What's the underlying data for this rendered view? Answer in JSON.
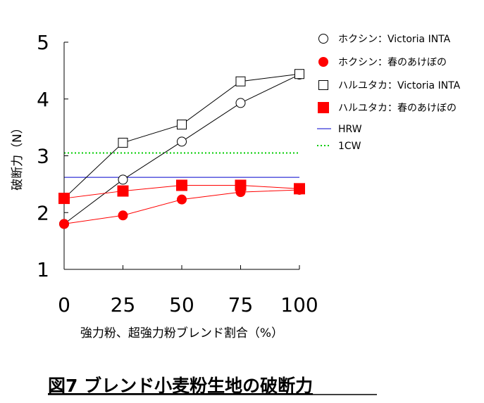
{
  "chart_data": {
    "type": "line",
    "title": "図7 ブレンド小麦粉生地の破断力",
    "xlabel": "強力粉、超強力粉ブレンド割合（%）",
    "ylabel": "破断力（N）",
    "x": [
      0,
      25,
      50,
      75,
      100
    ],
    "x_ticks": [
      "0",
      "25",
      "50",
      "75",
      "100"
    ],
    "y_ticks": [
      "1",
      "2",
      "3",
      "4",
      "5"
    ],
    "ylim": [
      1,
      5
    ],
    "xlim": [
      0,
      100
    ],
    "grid": false,
    "legend_position": "right",
    "series": [
      {
        "name": "ホクシン：Victoria INTA",
        "marker": "circle-open",
        "color": "#000000",
        "values": [
          1.8,
          2.58,
          3.25,
          3.93,
          4.43
        ]
      },
      {
        "name": "ホクシン：春のあけぼの",
        "marker": "circle-filled",
        "color": "#ff0000",
        "values": [
          1.8,
          1.95,
          2.23,
          2.36,
          2.4
        ]
      },
      {
        "name": "ハルユタカ：Victoria INTA",
        "marker": "square-open",
        "color": "#000000",
        "values": [
          2.25,
          3.23,
          3.55,
          4.31,
          4.44
        ]
      },
      {
        "name": "ハルユタカ：春のあけぼの",
        "marker": "square-filled",
        "color": "#ff0000",
        "values": [
          2.25,
          2.38,
          2.48,
          2.48,
          2.42
        ]
      }
    ],
    "reference_lines": [
      {
        "name": "HRW",
        "y": 2.62,
        "color": "#0000cc",
        "style": "solid"
      },
      {
        "name": "1CW",
        "y": 3.05,
        "color": "#00cc00",
        "style": "dotted"
      }
    ]
  }
}
